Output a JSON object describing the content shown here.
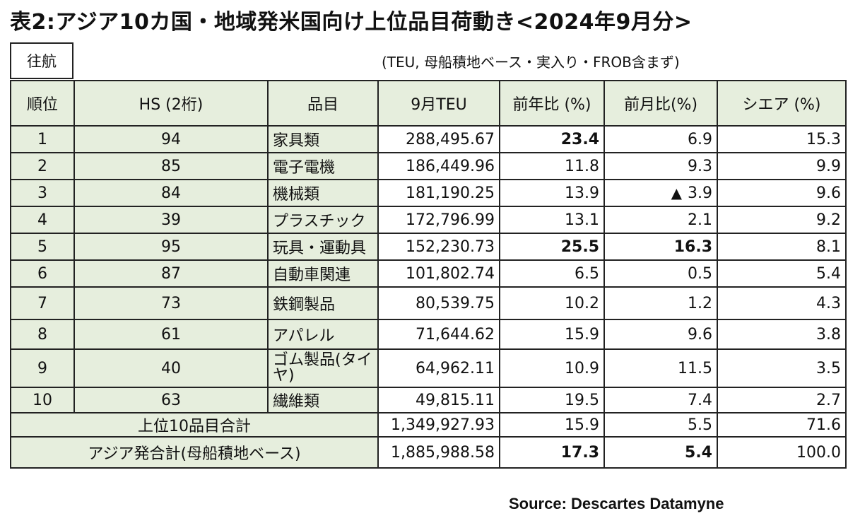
{
  "title": "表2:アジア10カ国・地域発米国向け上位品目荷動き<2024年9月分>",
  "route_label": "往航",
  "note": "(TEU, 母船積地ベース・実入り・FROB含まず)",
  "headers": {
    "rank": "順位",
    "hs": "HS (2桁)",
    "item": "品目",
    "teu": "9月TEU",
    "yoy": "前年比 (%)",
    "mom": "前月比(%)",
    "share": "シエア (%)"
  },
  "rows": [
    {
      "rank": "1",
      "hs": "94",
      "item": "家具類",
      "teu": "288,495.67",
      "yoy": "23.4",
      "mom": "6.9",
      "mom_prefix": "",
      "share": "15.3"
    },
    {
      "rank": "2",
      "hs": "85",
      "item": "電子電機",
      "teu": "186,449.96",
      "yoy": "11.8",
      "mom": "9.3",
      "mom_prefix": "",
      "share": "9.9"
    },
    {
      "rank": "3",
      "hs": "84",
      "item": "機械類",
      "teu": "181,190.25",
      "yoy": "13.9",
      "mom": "3.9",
      "mom_prefix": "▲",
      "share": "9.6"
    },
    {
      "rank": "4",
      "hs": "39",
      "item": "プラスチック",
      "teu": "172,796.99",
      "yoy": "13.1",
      "mom": "2.1",
      "mom_prefix": "",
      "share": "9.2"
    },
    {
      "rank": "5",
      "hs": "95",
      "item": "玩具・運動具",
      "teu": "152,230.73",
      "yoy": "25.5",
      "mom": "16.3",
      "mom_prefix": "",
      "share": "8.1"
    },
    {
      "rank": "6",
      "hs": "87",
      "item": "自動車関連",
      "teu": "101,802.74",
      "yoy": "6.5",
      "mom": "0.5",
      "mom_prefix": "",
      "share": "5.4"
    },
    {
      "rank": "7",
      "hs": "73",
      "item": "鉄鋼製品",
      "teu": "80,539.75",
      "yoy": "10.2",
      "mom": "1.2",
      "mom_prefix": "",
      "share": "4.3"
    },
    {
      "rank": "8",
      "hs": "61",
      "item": "アパレル",
      "teu": "71,644.62",
      "yoy": "15.9",
      "mom": "9.6",
      "mom_prefix": "",
      "share": "3.8"
    },
    {
      "rank": "9",
      "hs": "40",
      "item": "ゴム製品(タイヤ)",
      "teu": "64,962.11",
      "yoy": "10.9",
      "mom": "11.5",
      "mom_prefix": "",
      "share": "3.5"
    },
    {
      "rank": "10",
      "hs": "63",
      "item": "繊維類",
      "teu": "49,815.11",
      "yoy": "19.5",
      "mom": "7.4",
      "mom_prefix": "",
      "share": "2.7"
    }
  ],
  "totals": [
    {
      "label": "上位10品目合計",
      "teu": "1,349,927.93",
      "yoy": "15.9",
      "mom": "5.5",
      "share": "71.6"
    },
    {
      "label": "アジア発合計(母船積地ベース)",
      "teu": "1,885,988.58",
      "yoy": "17.3",
      "mom": "5.4",
      "share": "100.0"
    }
  ],
  "source": "Source: Descartes Datamyne"
}
